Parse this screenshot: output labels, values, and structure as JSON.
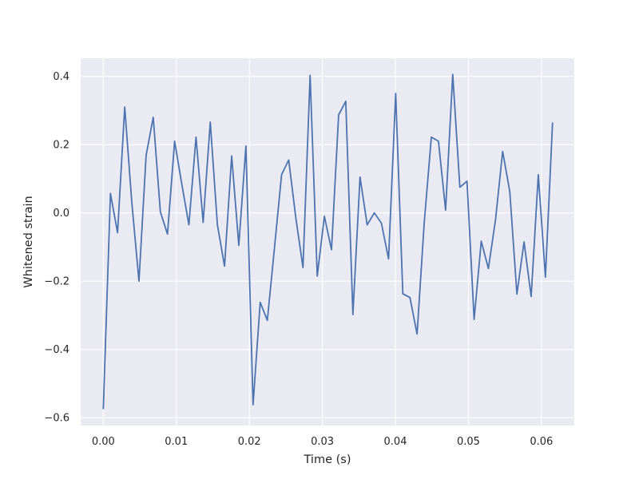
{
  "chart_data": {
    "type": "line",
    "title": "",
    "xlabel": "Time (s)",
    "ylabel": "Whitened strain",
    "xlim": [
      -0.0031,
      0.0645
    ],
    "ylim": [
      -0.623,
      0.453
    ],
    "xticks": [
      0.0,
      0.01,
      0.02,
      0.03,
      0.04,
      0.05,
      0.06
    ],
    "xtick_labels": [
      "0.00",
      "0.01",
      "0.02",
      "0.03",
      "0.04",
      "0.05",
      "0.06"
    ],
    "yticks": [
      -0.6,
      -0.4,
      -0.2,
      0.0,
      0.2,
      0.4
    ],
    "ytick_labels": [
      "−0.6",
      "−0.4",
      "−0.2",
      "0.0",
      "0.2",
      "0.4"
    ],
    "grid": true,
    "colors": {
      "line": "#4c72b0",
      "plot_bg": "#eaeaf2",
      "grid": "#ffffff"
    },
    "series": [
      {
        "x": [
          0.0,
          0.000977,
          0.001953,
          0.00293,
          0.003906,
          0.004883,
          0.005859,
          0.006836,
          0.007813,
          0.008789,
          0.009766,
          0.010742,
          0.011719,
          0.012695,
          0.013672,
          0.014648,
          0.015625,
          0.016602,
          0.017578,
          0.018555,
          0.019531,
          0.020508,
          0.021484,
          0.022461,
          0.023438,
          0.024414,
          0.025391,
          0.026367,
          0.027344,
          0.02832,
          0.029297,
          0.030273,
          0.03125,
          0.032227,
          0.033203,
          0.03418,
          0.035156,
          0.036133,
          0.037109,
          0.038086,
          0.039063,
          0.040039,
          0.041016,
          0.041992,
          0.042969,
          0.043945,
          0.044922,
          0.045898,
          0.046875,
          0.047852,
          0.048828,
          0.049805,
          0.050781,
          0.051758,
          0.052734,
          0.053711,
          0.054688,
          0.055664,
          0.056641,
          0.057617,
          0.058594,
          0.05957,
          0.060547,
          0.061523
        ],
        "values": [
          -0.575,
          0.057,
          -0.058,
          0.31,
          0.03,
          -0.2,
          0.168,
          0.28,
          0.003,
          -0.062,
          0.21,
          0.085,
          -0.035,
          0.222,
          -0.028,
          0.266,
          -0.035,
          -0.156,
          0.167,
          -0.095,
          0.196,
          -0.562,
          -0.262,
          -0.315,
          -0.103,
          0.112,
          0.155,
          -0.015,
          -0.16,
          0.403,
          -0.185,
          -0.01,
          -0.108,
          0.287,
          0.327,
          -0.298,
          0.105,
          -0.035,
          0.0,
          -0.03,
          -0.135,
          0.35,
          -0.237,
          -0.248,
          -0.355,
          -0.03,
          0.222,
          0.21,
          0.008,
          0.406,
          0.075,
          0.093,
          -0.312,
          -0.083,
          -0.163,
          -0.02,
          0.18,
          0.063,
          -0.238,
          -0.085,
          -0.245,
          0.112,
          -0.188,
          0.265
        ]
      }
    ]
  }
}
